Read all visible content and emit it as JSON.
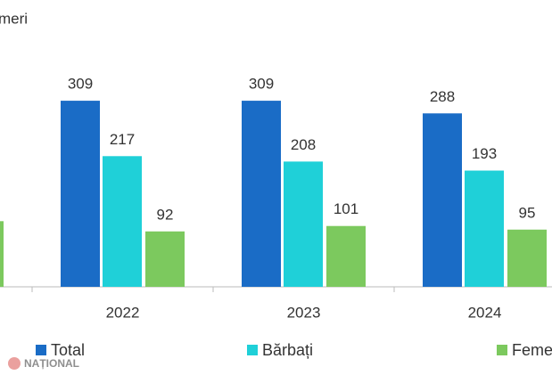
{
  "chart_data": {
    "type": "bar",
    "subtitle": "meri",
    "categories": [
      null,
      "2022",
      "2023",
      "2024"
    ],
    "series": [
      {
        "name": "Total",
        "color": "#1a6cc6",
        "values": [
          null,
          309,
          309,
          288
        ]
      },
      {
        "name": "Bărbați",
        "color": "#1fd0d8",
        "values": [
          null,
          217,
          208,
          193
        ]
      },
      {
        "name": "Femei",
        "color": "#7cc95e",
        "values": [
          109,
          92,
          101,
          95
        ]
      }
    ],
    "ylim": [
      0,
      460
    ]
  },
  "watermark": "NAȚIONAL"
}
